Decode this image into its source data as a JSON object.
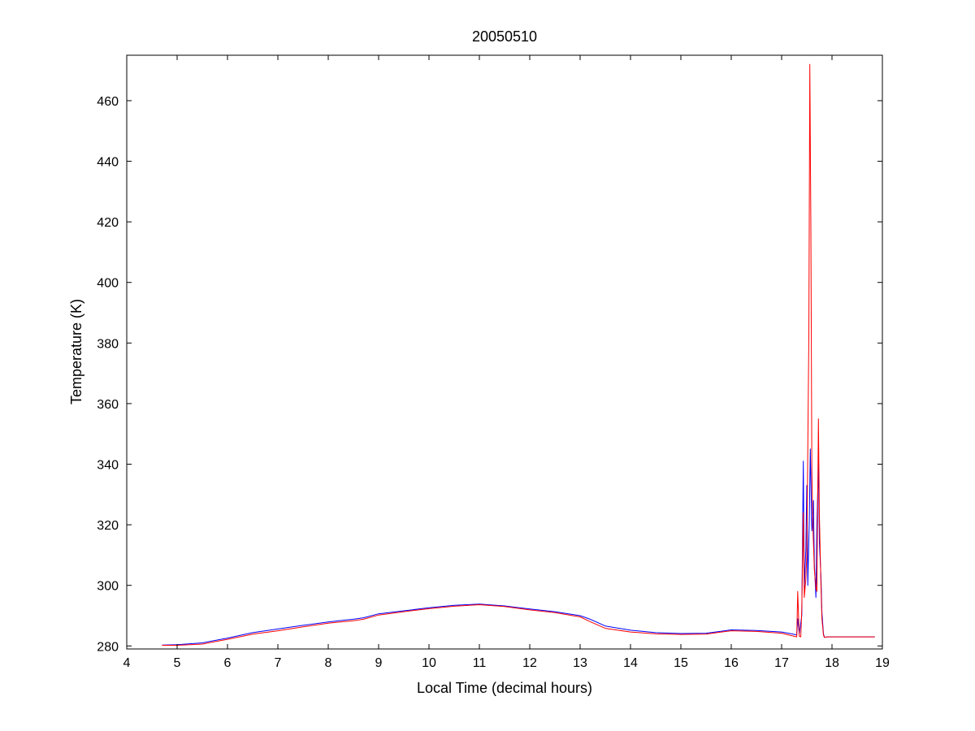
{
  "chart_data": {
    "type": "line",
    "title": "20050510",
    "xlabel": "Local Time (decimal hours)",
    "ylabel": "Temperature (K)",
    "xlim": [
      4,
      19
    ],
    "ylim": [
      279,
      475
    ],
    "xticks": [
      4,
      5,
      6,
      7,
      8,
      9,
      10,
      11,
      12,
      13,
      14,
      15,
      16,
      17,
      18,
      19
    ],
    "yticks": [
      280,
      300,
      320,
      340,
      360,
      380,
      400,
      420,
      440,
      460
    ],
    "grid": false,
    "legend": "none",
    "series": [
      {
        "color": "#0000ff",
        "x": [
          4.7,
          5.0,
          5.5,
          6.0,
          6.5,
          7.0,
          7.5,
          8.0,
          8.3,
          8.5,
          8.7,
          9.0,
          9.5,
          10.0,
          10.5,
          11.0,
          11.5,
          12.0,
          12.5,
          13.0,
          13.2,
          13.5,
          14.0,
          14.5,
          15.0,
          15.5,
          16.0,
          16.5,
          17.0,
          17.2,
          17.3,
          17.32,
          17.35,
          17.4,
          17.43,
          17.45,
          17.48,
          17.5,
          17.52,
          17.55,
          17.57,
          17.6,
          17.63,
          17.65,
          17.68,
          17.7,
          17.73,
          17.75,
          17.78,
          17.8,
          17.83,
          17.85,
          17.9,
          18.0,
          18.5,
          18.85
        ],
        "y": [
          280.3,
          280.4,
          281.0,
          282.6,
          284.4,
          285.6,
          286.8,
          287.9,
          288.5,
          288.8,
          289.3,
          290.6,
          291.6,
          292.6,
          293.4,
          293.8,
          293.2,
          292.2,
          291.3,
          290.0,
          288.8,
          286.6,
          285.2,
          284.4,
          284.1,
          284.2,
          285.3,
          285.1,
          284.6,
          284.0,
          283.6,
          289.0,
          284.0,
          290.0,
          341.0,
          299.0,
          312.0,
          333.0,
          300.0,
          322.0,
          345.0,
          318.0,
          328.0,
          307.0,
          296.0,
          320.0,
          340.0,
          314.0,
          303.0,
          291.0,
          284.0,
          282.8,
          283.0,
          283.0,
          283.0,
          283.0
        ]
      },
      {
        "color": "#ff0000",
        "x": [
          4.7,
          5.0,
          5.5,
          6.0,
          6.5,
          7.0,
          7.5,
          8.0,
          8.3,
          8.5,
          8.7,
          9.0,
          9.5,
          10.0,
          10.5,
          11.0,
          11.5,
          12.0,
          12.5,
          13.0,
          13.2,
          13.5,
          14.0,
          14.5,
          15.0,
          15.5,
          16.0,
          16.5,
          17.0,
          17.2,
          17.3,
          17.32,
          17.35,
          17.38,
          17.4,
          17.43,
          17.45,
          17.48,
          17.5,
          17.52,
          17.54,
          17.56,
          17.58,
          17.6,
          17.62,
          17.65,
          17.68,
          17.7,
          17.73,
          17.75,
          17.78,
          17.8,
          17.83,
          17.85,
          17.9,
          18.0,
          18.5,
          18.85
        ],
        "y": [
          280.2,
          280.2,
          280.6,
          282.2,
          283.9,
          285.0,
          286.3,
          287.5,
          288.0,
          288.3,
          288.8,
          290.2,
          291.3,
          292.3,
          293.1,
          293.6,
          293.0,
          291.9,
          291.0,
          289.6,
          288.0,
          285.8,
          284.6,
          284.0,
          283.8,
          283.9,
          285.0,
          284.8,
          284.2,
          283.4,
          283.0,
          298.0,
          283.2,
          283.0,
          292.0,
          324.0,
          296.0,
          302.0,
          310.0,
          345.0,
          382.0,
          472.0,
          419.0,
          338.0,
          320.0,
          305.0,
          299.0,
          298.0,
          355.0,
          323.0,
          300.0,
          289.0,
          283.5,
          282.8,
          283.0,
          283.0,
          283.0,
          283.0
        ]
      }
    ]
  }
}
